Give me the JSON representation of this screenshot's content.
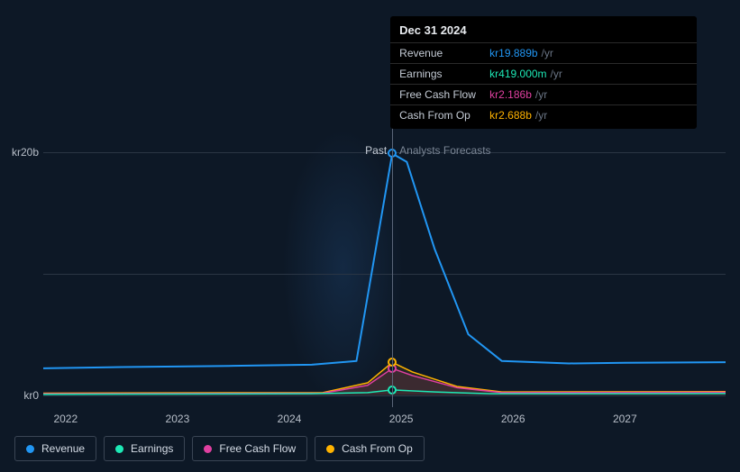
{
  "background_color": "#0d1826",
  "grid_color": "#2a3544",
  "chart": {
    "type": "line",
    "x_domain_years": [
      2021.8,
      2027.9
    ],
    "x_ticks": [
      2022,
      2023,
      2024,
      2025,
      2026,
      2027
    ],
    "y_domain": [
      -1,
      22
    ],
    "y_gridlines": [
      0,
      10,
      20
    ],
    "y_tick_labels": [
      {
        "v": 0,
        "label": "kr0"
      },
      {
        "v": 20,
        "label": "kr20b"
      }
    ],
    "cursor_year": 2024.92,
    "past_label": "Past",
    "forecast_label": "Analysts Forecasts",
    "series": [
      {
        "id": "revenue",
        "label": "Revenue",
        "color": "#2196f3",
        "line_width": 2,
        "fill_opacity": 0,
        "points": [
          {
            "x": 2021.8,
            "y": 2.2
          },
          {
            "x": 2022.5,
            "y": 2.3
          },
          {
            "x": 2023.5,
            "y": 2.4
          },
          {
            "x": 2024.2,
            "y": 2.5
          },
          {
            "x": 2024.6,
            "y": 2.8
          },
          {
            "x": 2024.92,
            "y": 19.889
          },
          {
            "x": 2025.05,
            "y": 19.2
          },
          {
            "x": 2025.3,
            "y": 12.0
          },
          {
            "x": 2025.6,
            "y": 5.0
          },
          {
            "x": 2025.9,
            "y": 2.8
          },
          {
            "x": 2026.5,
            "y": 2.6
          },
          {
            "x": 2027.0,
            "y": 2.65
          },
          {
            "x": 2027.9,
            "y": 2.7
          }
        ]
      },
      {
        "id": "earnings",
        "label": "Earnings",
        "color": "#1de9b6",
        "line_width": 1.5,
        "fill_opacity": 0,
        "points": [
          {
            "x": 2021.8,
            "y": 0.05
          },
          {
            "x": 2023.0,
            "y": 0.08
          },
          {
            "x": 2024.2,
            "y": 0.1
          },
          {
            "x": 2024.7,
            "y": 0.2
          },
          {
            "x": 2024.92,
            "y": 0.419
          },
          {
            "x": 2025.3,
            "y": 0.25
          },
          {
            "x": 2025.8,
            "y": 0.1
          },
          {
            "x": 2027.9,
            "y": 0.12
          }
        ]
      },
      {
        "id": "fcf",
        "label": "Free Cash Flow",
        "color": "#e040a0",
        "line_width": 1.5,
        "fill_opacity": 0.12,
        "points": [
          {
            "x": 2021.8,
            "y": 0.1
          },
          {
            "x": 2023.0,
            "y": 0.12
          },
          {
            "x": 2024.3,
            "y": 0.15
          },
          {
            "x": 2024.7,
            "y": 0.8
          },
          {
            "x": 2024.92,
            "y": 2.186
          },
          {
            "x": 2025.1,
            "y": 1.6
          },
          {
            "x": 2025.5,
            "y": 0.6
          },
          {
            "x": 2025.9,
            "y": 0.2
          },
          {
            "x": 2027.9,
            "y": 0.22
          }
        ]
      },
      {
        "id": "cfo",
        "label": "Cash From Op",
        "color": "#ffb300",
        "line_width": 1.5,
        "fill_opacity": 0.1,
        "points": [
          {
            "x": 2021.8,
            "y": 0.15
          },
          {
            "x": 2023.0,
            "y": 0.18
          },
          {
            "x": 2024.3,
            "y": 0.2
          },
          {
            "x": 2024.7,
            "y": 1.0
          },
          {
            "x": 2024.92,
            "y": 2.688
          },
          {
            "x": 2025.1,
            "y": 1.9
          },
          {
            "x": 2025.5,
            "y": 0.7
          },
          {
            "x": 2025.9,
            "y": 0.25
          },
          {
            "x": 2027.9,
            "y": 0.28
          }
        ]
      }
    ]
  },
  "tooltip": {
    "date": "Dec 31 2024",
    "unit": "/yr",
    "rows": [
      {
        "label": "Revenue",
        "value": "kr19.889b",
        "color": "#2196f3"
      },
      {
        "label": "Earnings",
        "value": "kr419.000m",
        "color": "#1de9b6"
      },
      {
        "label": "Free Cash Flow",
        "value": "kr2.186b",
        "color": "#e040a0"
      },
      {
        "label": "Cash From Op",
        "value": "kr2.688b",
        "color": "#ffb300"
      }
    ]
  },
  "legend": [
    {
      "label": "Revenue",
      "color": "#2196f3"
    },
    {
      "label": "Earnings",
      "color": "#1de9b6"
    },
    {
      "label": "Free Cash Flow",
      "color": "#e040a0"
    },
    {
      "label": "Cash From Op",
      "color": "#ffb300"
    }
  ]
}
